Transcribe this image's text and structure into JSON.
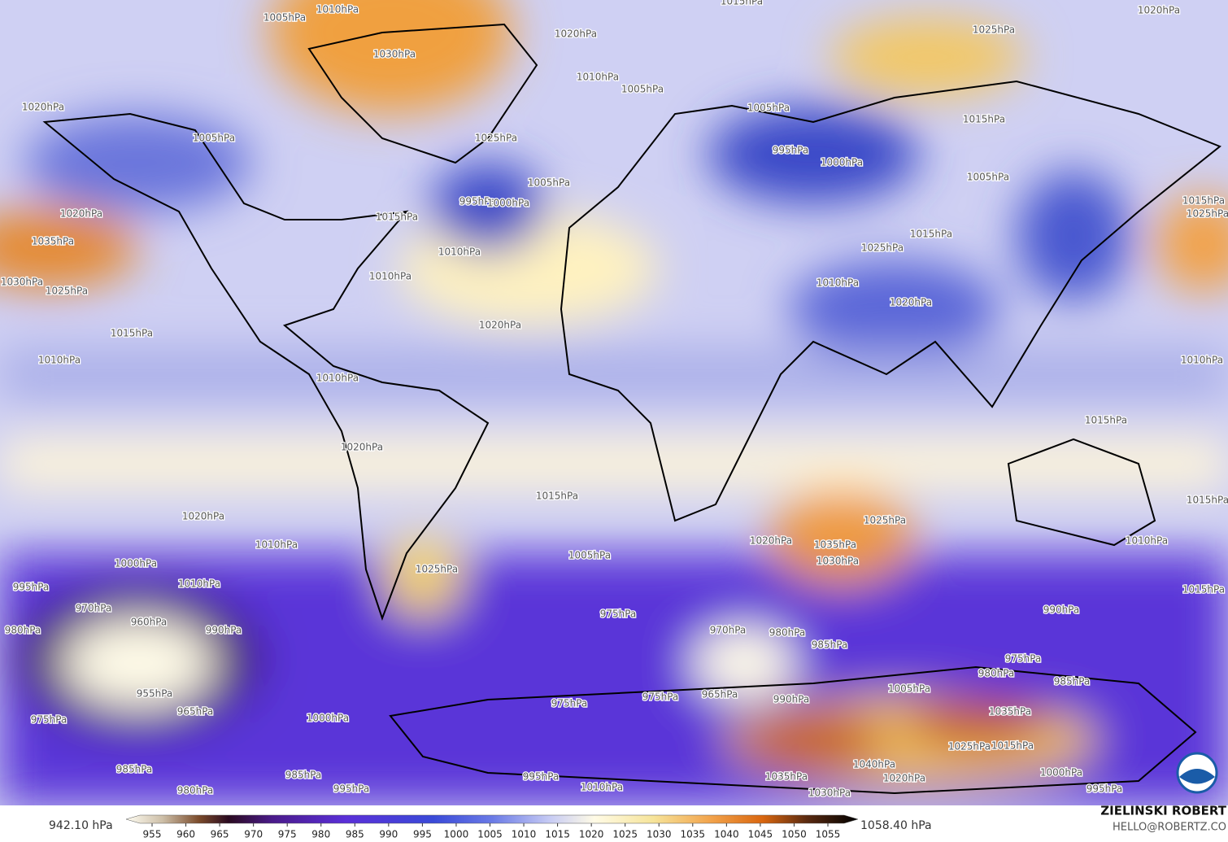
{
  "map": {
    "contour_labels": [
      "1005hPa",
      "1010hPa",
      "1015hPa",
      "1020hPa",
      "1020hPa",
      "1025hPa",
      "1030hPa",
      "1010hPa",
      "1005hPa",
      "1020hPa",
      "1005hPa",
      "1015hPa",
      "1025hPa",
      "1005hPa",
      "995hPa",
      "1000hPa",
      "1005hPa",
      "1005hPa",
      "1020hPa",
      "995hPa",
      "1000hPa",
      "1015hPa",
      "1015hPa",
      "1025hPa",
      "1035hPa",
      "1015hPa",
      "1025hPa",
      "1010hPa",
      "1030hPa",
      "1025hPa",
      "1010hPa",
      "1010hPa",
      "1020hPa",
      "1020hPa",
      "1015hPa",
      "1010hPa",
      "1010hPa",
      "1010hPa",
      "1015hPa",
      "1020hPa",
      "1015hPa",
      "1020hPa",
      "1025hPa",
      "1035hPa",
      "1030hPa",
      "1020hPa",
      "1010hPa",
      "1015hPa",
      "1010hPa",
      "1005hPa",
      "1000hPa",
      "995hPa",
      "1010hPa",
      "1025hPa",
      "970hPa",
      "960hPa",
      "990hPa",
      "980hPa",
      "975hPa",
      "970hPa",
      "980hPa",
      "985hPa",
      "990hPa",
      "1015hPa",
      "975hPa",
      "980hPa",
      "985hPa",
      "955hPa",
      "965hPa",
      "975hPa",
      "1000hPa",
      "975hPa",
      "975hPa",
      "965hPa",
      "990hPa",
      "1005hPa",
      "1035hPa",
      "1025hPa",
      "1015hPa",
      "1040hPa",
      "1020hPa",
      "1035hPa",
      "1030hPa",
      "985hPa",
      "985hPa",
      "980hPa",
      "995hPa",
      "995hPa",
      "1010hPa",
      "1000hPa",
      "995hPa"
    ]
  },
  "colorbar": {
    "min_label": "942.10 hPa",
    "max_label": "1058.40 hPa",
    "ticks": [
      955,
      960,
      965,
      970,
      975,
      980,
      985,
      990,
      995,
      1000,
      1005,
      1010,
      1015,
      1020,
      1025,
      1030,
      1035,
      1040,
      1045,
      1050,
      1055
    ]
  },
  "credit": {
    "author": "ZIELINSKI ROBERT",
    "contact": "HELLO@ROBERTZ.CO"
  }
}
